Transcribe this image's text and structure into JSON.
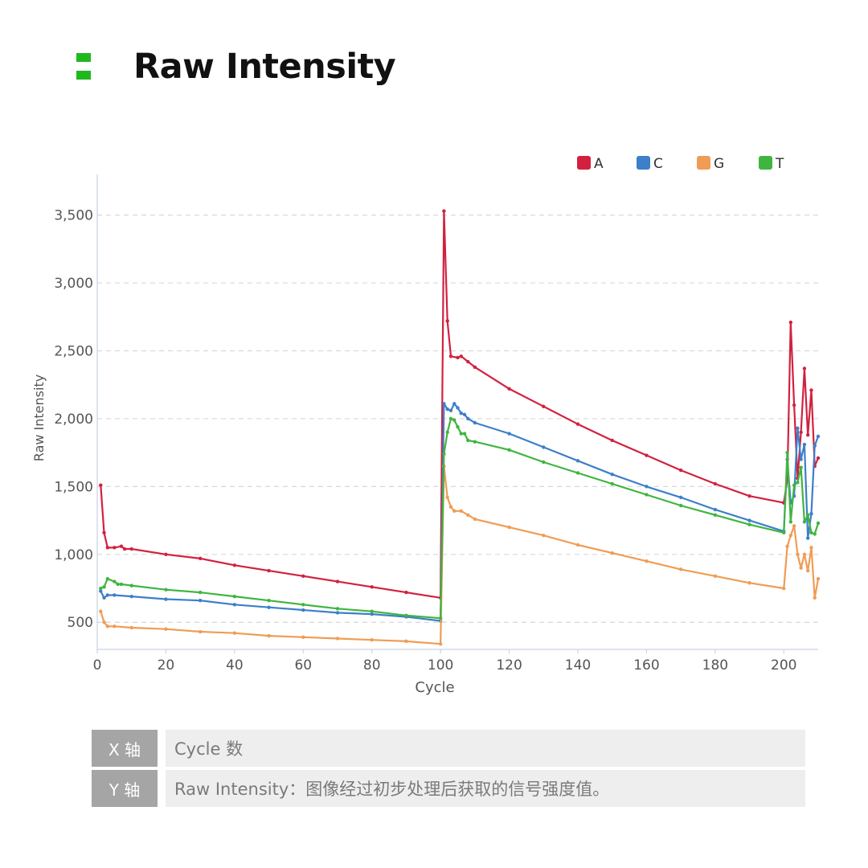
{
  "header": {
    "title": "Raw Intensity"
  },
  "info_table": [
    {
      "key": "X 轴",
      "value": "Cycle 数"
    },
    {
      "key": "Y 轴",
      "value": "Raw Intensity：图像经过初步处理后获取的信号强度值。"
    }
  ],
  "chart_data": {
    "type": "line",
    "xlabel": "Cycle",
    "ylabel": "Raw Intensity",
    "xlim": [
      0,
      210
    ],
    "ylim": [
      300,
      3800
    ],
    "x_ticks": [
      0,
      20,
      40,
      60,
      80,
      100,
      120,
      140,
      160,
      180,
      200
    ],
    "y_ticks": [
      500,
      1000,
      1500,
      2000,
      2500,
      3000,
      3500
    ],
    "x_tick_labels": [
      "0",
      "20",
      "40",
      "60",
      "80",
      "100",
      "120",
      "140",
      "160",
      "180",
      "200"
    ],
    "y_tick_labels": [
      "500",
      "1,000",
      "1,500",
      "2,000",
      "2,500",
      "3,000",
      "3,500"
    ],
    "grid": "horizontal-dashed",
    "legend_position": "top-right",
    "series": [
      {
        "name": "A",
        "color": "#d2213f",
        "points": [
          [
            1,
            1510
          ],
          [
            2,
            1160
          ],
          [
            3,
            1050
          ],
          [
            5,
            1050
          ],
          [
            7,
            1060
          ],
          [
            8,
            1040
          ],
          [
            10,
            1040
          ],
          [
            20,
            1000
          ],
          [
            30,
            970
          ],
          [
            40,
            920
          ],
          [
            50,
            880
          ],
          [
            60,
            840
          ],
          [
            70,
            800
          ],
          [
            80,
            760
          ],
          [
            90,
            720
          ],
          [
            100,
            680
          ],
          [
            101,
            3530
          ],
          [
            102,
            2720
          ],
          [
            103,
            2460
          ],
          [
            105,
            2450
          ],
          [
            106,
            2460
          ],
          [
            108,
            2420
          ],
          [
            110,
            2380
          ],
          [
            120,
            2220
          ],
          [
            130,
            2090
          ],
          [
            140,
            1960
          ],
          [
            150,
            1840
          ],
          [
            160,
            1730
          ],
          [
            170,
            1620
          ],
          [
            180,
            1520
          ],
          [
            190,
            1430
          ],
          [
            200,
            1380
          ],
          [
            201,
            1550
          ],
          [
            202,
            2710
          ],
          [
            203,
            2100
          ],
          [
            204,
            1560
          ],
          [
            205,
            1900
          ],
          [
            206,
            2370
          ],
          [
            207,
            1880
          ],
          [
            208,
            2210
          ],
          [
            209,
            1650
          ],
          [
            210,
            1710
          ]
        ]
      },
      {
        "name": "C",
        "color": "#3d7fc9",
        "points": [
          [
            1,
            730
          ],
          [
            2,
            680
          ],
          [
            3,
            700
          ],
          [
            5,
            700
          ],
          [
            10,
            690
          ],
          [
            20,
            670
          ],
          [
            30,
            660
          ],
          [
            40,
            630
          ],
          [
            50,
            610
          ],
          [
            60,
            590
          ],
          [
            70,
            570
          ],
          [
            80,
            560
          ],
          [
            90,
            540
          ],
          [
            100,
            510
          ],
          [
            101,
            2110
          ],
          [
            102,
            2070
          ],
          [
            103,
            2060
          ],
          [
            104,
            2110
          ],
          [
            105,
            2080
          ],
          [
            106,
            2040
          ],
          [
            107,
            2030
          ],
          [
            108,
            2000
          ],
          [
            110,
            1970
          ],
          [
            120,
            1890
          ],
          [
            130,
            1790
          ],
          [
            140,
            1690
          ],
          [
            150,
            1590
          ],
          [
            160,
            1500
          ],
          [
            170,
            1420
          ],
          [
            180,
            1330
          ],
          [
            190,
            1250
          ],
          [
            200,
            1170
          ],
          [
            201,
            1700
          ],
          [
            202,
            1380
          ],
          [
            203,
            1430
          ],
          [
            204,
            1930
          ],
          [
            205,
            1700
          ],
          [
            206,
            1810
          ],
          [
            207,
            1120
          ],
          [
            208,
            1300
          ],
          [
            209,
            1800
          ],
          [
            210,
            1870
          ]
        ]
      },
      {
        "name": "G",
        "color": "#f09c54",
        "points": [
          [
            1,
            580
          ],
          [
            2,
            500
          ],
          [
            3,
            470
          ],
          [
            5,
            470
          ],
          [
            10,
            460
          ],
          [
            20,
            450
          ],
          [
            30,
            430
          ],
          [
            40,
            420
          ],
          [
            50,
            400
          ],
          [
            60,
            390
          ],
          [
            70,
            380
          ],
          [
            80,
            370
          ],
          [
            90,
            360
          ],
          [
            100,
            340
          ],
          [
            101,
            1650
          ],
          [
            102,
            1420
          ],
          [
            103,
            1350
          ],
          [
            104,
            1320
          ],
          [
            106,
            1320
          ],
          [
            108,
            1290
          ],
          [
            110,
            1260
          ],
          [
            120,
            1200
          ],
          [
            130,
            1140
          ],
          [
            140,
            1070
          ],
          [
            150,
            1010
          ],
          [
            160,
            950
          ],
          [
            170,
            890
          ],
          [
            180,
            840
          ],
          [
            190,
            790
          ],
          [
            200,
            750
          ],
          [
            201,
            1060
          ],
          [
            202,
            1140
          ],
          [
            203,
            1210
          ],
          [
            204,
            1000
          ],
          [
            205,
            900
          ],
          [
            206,
            1000
          ],
          [
            207,
            880
          ],
          [
            208,
            1050
          ],
          [
            209,
            680
          ],
          [
            210,
            820
          ]
        ]
      },
      {
        "name": "T",
        "color": "#3fb53f",
        "points": [
          [
            1,
            750
          ],
          [
            2,
            760
          ],
          [
            3,
            820
          ],
          [
            5,
            800
          ],
          [
            6,
            780
          ],
          [
            7,
            780
          ],
          [
            10,
            770
          ],
          [
            20,
            740
          ],
          [
            30,
            720
          ],
          [
            40,
            690
          ],
          [
            50,
            660
          ],
          [
            60,
            630
          ],
          [
            70,
            600
          ],
          [
            80,
            580
          ],
          [
            90,
            550
          ],
          [
            100,
            530
          ],
          [
            101,
            1740
          ],
          [
            102,
            1900
          ],
          [
            103,
            2000
          ],
          [
            104,
            1990
          ],
          [
            105,
            1940
          ],
          [
            106,
            1890
          ],
          [
            107,
            1890
          ],
          [
            108,
            1840
          ],
          [
            110,
            1830
          ],
          [
            120,
            1770
          ],
          [
            130,
            1680
          ],
          [
            140,
            1600
          ],
          [
            150,
            1520
          ],
          [
            160,
            1440
          ],
          [
            170,
            1360
          ],
          [
            180,
            1290
          ],
          [
            190,
            1220
          ],
          [
            200,
            1160
          ],
          [
            201,
            1750
          ],
          [
            202,
            1240
          ],
          [
            203,
            1510
          ],
          [
            204,
            1530
          ],
          [
            205,
            1640
          ],
          [
            206,
            1240
          ],
          [
            207,
            1290
          ],
          [
            208,
            1160
          ],
          [
            209,
            1150
          ],
          [
            210,
            1230
          ]
        ]
      }
    ]
  }
}
